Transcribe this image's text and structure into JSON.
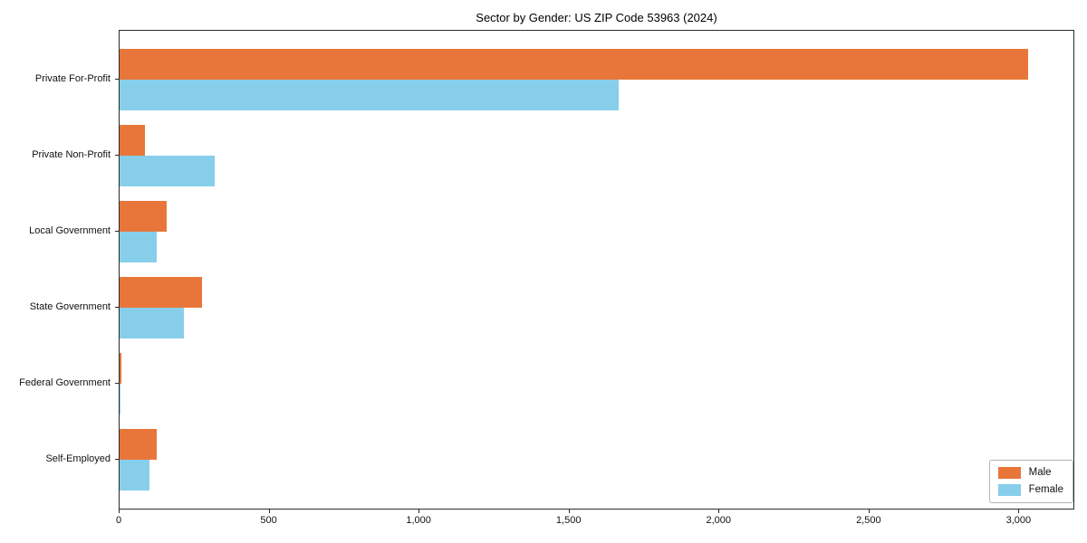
{
  "chart_data": {
    "type": "bar",
    "orientation": "horizontal",
    "title": "Sector by Gender: US ZIP Code 53963 (2024)",
    "categories": [
      "Private For-Profit",
      "Private Non-Profit",
      "Local Government",
      "State Government",
      "Federal Government",
      "Self-Employed"
    ],
    "series": [
      {
        "name": "Male",
        "color": "#e8763a",
        "values": [
          3028,
          85,
          156,
          276,
          6,
          123
        ]
      },
      {
        "name": "Female",
        "color": "#87ceeb",
        "values": [
          1665,
          318,
          123,
          213,
          4,
          100
        ]
      }
    ],
    "xlim": [
      0,
      3180
    ],
    "xticks": [
      0,
      500,
      1000,
      1500,
      2000,
      2500,
      3000
    ],
    "xtick_labels": [
      "0",
      "500",
      "1,000",
      "1,500",
      "2,000",
      "2,500",
      "3,000"
    ],
    "xlabel": "",
    "ylabel": "",
    "grid": false,
    "legend_position": "lower right",
    "frame_color": "#2b2b2b",
    "background_color": "#ffffff"
  }
}
